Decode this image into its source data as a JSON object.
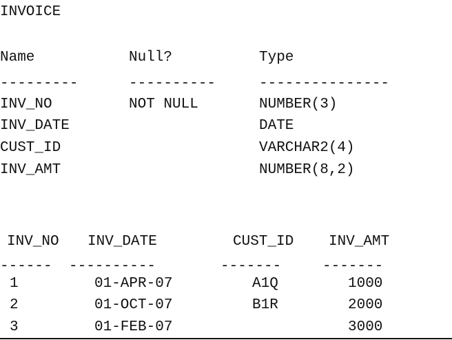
{
  "title": "INVOICE",
  "describe": {
    "headers": {
      "name": "Name",
      "null": "Null?",
      "type": "Type"
    },
    "dashes": {
      "name": "---------",
      "null": "----------",
      "type": "---------------"
    },
    "rows": [
      {
        "name": "INV_NO",
        "null": "NOT NULL",
        "type": "NUMBER(3)"
      },
      {
        "name": "INV_DATE",
        "null": "",
        "type": "DATE"
      },
      {
        "name": "CUST_ID",
        "null": "",
        "type": "VARCHAR2(4)"
      },
      {
        "name": "INV_AMT",
        "null": "",
        "type": "NUMBER(8,2)"
      }
    ]
  },
  "query": {
    "headers": {
      "inv_no": "INV_NO",
      "inv_date": "INV_DATE",
      "cust_id": "CUST_ID",
      "inv_amt": "INV_AMT"
    },
    "dashes": {
      "inv_no": "------",
      "inv_date": "----------",
      "cust_id": "-------",
      "inv_amt": "-------"
    },
    "rows": [
      {
        "inv_no": "1",
        "inv_date": "01-APR-07",
        "cust_id": "A1Q",
        "inv_amt": "1000"
      },
      {
        "inv_no": "2",
        "inv_date": "01-OCT-07",
        "cust_id": "B1R",
        "inv_amt": "2000"
      },
      {
        "inv_no": "3",
        "inv_date": "01-FEB-07",
        "cust_id": "",
        "inv_amt": "3000"
      }
    ]
  }
}
